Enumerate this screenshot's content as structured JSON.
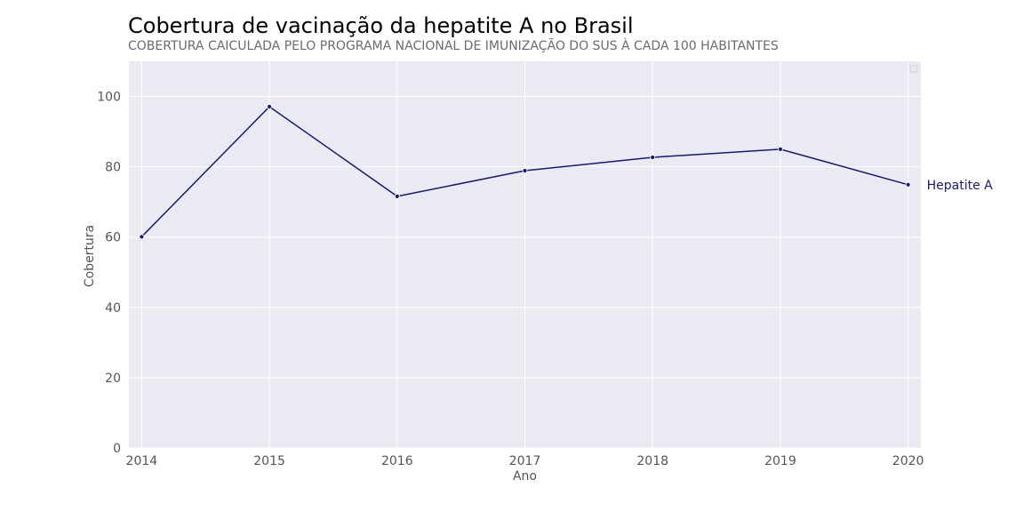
{
  "chart_data": {
    "type": "line",
    "title": "Cobertura de vacinação da hepatite A no Brasil",
    "subtitle": "COBERTURA CAICULADA PELO PROGRAMA NACIONAL DE IMUNIZAÇÃO DO SUS À CADA 100 HABITANTES",
    "xlabel": "Ano",
    "ylabel": "Cobertura",
    "x": [
      2014,
      2015,
      2016,
      2017,
      2018,
      2019,
      2020
    ],
    "x_tick_labels": [
      "2014",
      "2015",
      "2016",
      "2017",
      "2018",
      "2019",
      "2020"
    ],
    "xlim": [
      2013.9,
      2020.1
    ],
    "ylim": [
      0,
      110
    ],
    "y_ticks": [
      0,
      20,
      40,
      60,
      80,
      100
    ],
    "y_tick_labels": [
      "0",
      "20",
      "40",
      "60",
      "80",
      "100"
    ],
    "grid": true,
    "series": [
      {
        "name": "Hepatite A",
        "values": [
          60.1,
          97.1,
          71.6,
          78.9,
          82.7,
          85.0,
          74.9
        ]
      }
    ],
    "colors": {
      "line": "#191970",
      "plot_background": "#eaeaf2",
      "grid": "#ffffff"
    }
  }
}
